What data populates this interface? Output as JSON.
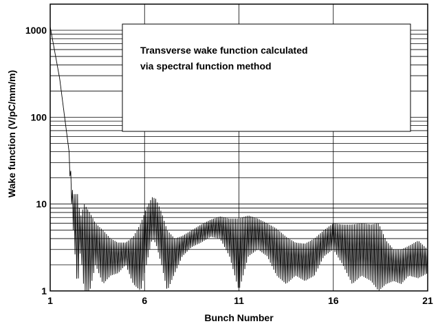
{
  "chart_data": {
    "type": "line",
    "xlabel": "Bunch Number",
    "ylabel": "Wake function (V/pC/mm/m)",
    "xlim": [
      1,
      21
    ],
    "ylim": [
      1,
      2000
    ],
    "yscale": "log",
    "xticks": [
      1,
      6,
      11,
      16,
      21
    ],
    "yticks": [
      1,
      10,
      100,
      1000
    ],
    "xtick_labels": [
      "1",
      "6",
      "11",
      "16",
      "21"
    ],
    "ytick_labels": [
      "1",
      "10",
      "100",
      "1000"
    ],
    "grid": true,
    "annotation": {
      "lines": [
        "Transverse wake function calculated",
        "via spectral function method"
      ]
    },
    "series": [
      {
        "upper": [
          [
            1.0,
            1100
          ],
          [
            1.5,
            280
          ],
          [
            2.0,
            40
          ],
          [
            2.2,
            13
          ],
          [
            2.45,
            13
          ],
          [
            2.6,
            7
          ],
          [
            2.8,
            10
          ],
          [
            3.1,
            8
          ],
          [
            3.4,
            6
          ],
          [
            3.8,
            5
          ],
          [
            4.2,
            4
          ],
          [
            4.6,
            3.6
          ],
          [
            5.0,
            3.6
          ],
          [
            5.4,
            4.2
          ],
          [
            5.8,
            6
          ],
          [
            6.1,
            9
          ],
          [
            6.4,
            12
          ],
          [
            6.6,
            11.5
          ],
          [
            6.9,
            8
          ],
          [
            7.2,
            5
          ],
          [
            7.6,
            4
          ],
          [
            8.0,
            4.3
          ],
          [
            8.5,
            5
          ],
          [
            9.0,
            5.8
          ],
          [
            9.5,
            6.6
          ],
          [
            10.0,
            7.2
          ],
          [
            10.5,
            6.8
          ],
          [
            11.0,
            6.8
          ],
          [
            11.5,
            7.4
          ],
          [
            12.0,
            6.8
          ],
          [
            12.5,
            6
          ],
          [
            13.0,
            5.2
          ],
          [
            13.5,
            4.2
          ],
          [
            14.0,
            3.6
          ],
          [
            14.5,
            3.5
          ],
          [
            15.0,
            4
          ],
          [
            15.5,
            5
          ],
          [
            16.0,
            6
          ],
          [
            16.5,
            5.8
          ],
          [
            17.0,
            5.8
          ],
          [
            17.5,
            6
          ],
          [
            18.0,
            5.8
          ],
          [
            18.4,
            6
          ],
          [
            18.8,
            3.8
          ],
          [
            19.2,
            3
          ],
          [
            19.6,
            3
          ],
          [
            20.0,
            3.3
          ],
          [
            20.5,
            3.8
          ],
          [
            21.0,
            3
          ]
        ],
        "lower": [
          [
            1.0,
            1100
          ],
          [
            1.5,
            280
          ],
          [
            2.0,
            30
          ],
          [
            2.2,
            6
          ],
          [
            2.45,
            1
          ],
          [
            2.6,
            3
          ],
          [
            2.8,
            1
          ],
          [
            3.1,
            1
          ],
          [
            3.4,
            2
          ],
          [
            3.8,
            1.2
          ],
          [
            4.2,
            1.5
          ],
          [
            4.6,
            1.6
          ],
          [
            5.0,
            2
          ],
          [
            5.4,
            1.2
          ],
          [
            5.8,
            1
          ],
          [
            6.1,
            2
          ],
          [
            6.4,
            4
          ],
          [
            6.6,
            3.5
          ],
          [
            6.9,
            2
          ],
          [
            7.2,
            1
          ],
          [
            7.6,
            1.6
          ],
          [
            8.0,
            2.5
          ],
          [
            8.5,
            3.2
          ],
          [
            9.0,
            3.6
          ],
          [
            9.5,
            4.2
          ],
          [
            10.0,
            4
          ],
          [
            10.5,
            2.5
          ],
          [
            11.0,
            1
          ],
          [
            11.5,
            2.5
          ],
          [
            12.0,
            3
          ],
          [
            12.5,
            2.5
          ],
          [
            13.0,
            1.5
          ],
          [
            13.5,
            1.2
          ],
          [
            14.0,
            1.5
          ],
          [
            14.5,
            1.3
          ],
          [
            15.0,
            1.5
          ],
          [
            15.5,
            2.5
          ],
          [
            16.0,
            3
          ],
          [
            16.5,
            2
          ],
          [
            17.0,
            1.2
          ],
          [
            17.5,
            1.5
          ],
          [
            18.0,
            1.3
          ],
          [
            18.4,
            1
          ],
          [
            18.8,
            1.2
          ],
          [
            19.2,
            1.3
          ],
          [
            19.6,
            1.2
          ],
          [
            20.0,
            1.5
          ],
          [
            20.5,
            1.4
          ],
          [
            21.0,
            1.6
          ]
        ]
      }
    ]
  }
}
